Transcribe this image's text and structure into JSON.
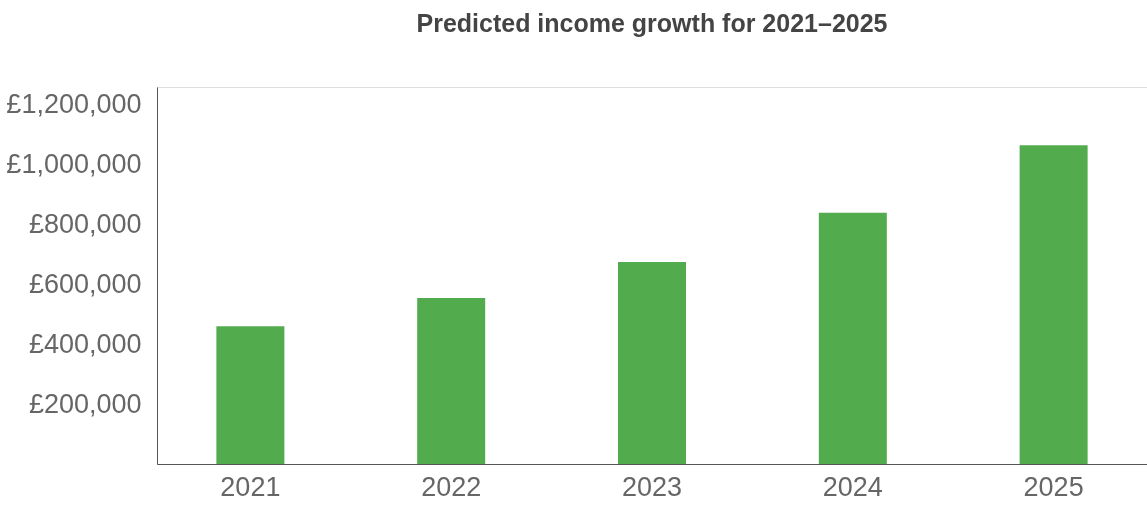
{
  "chart_data": {
    "type": "bar",
    "title": "Predicted income growth for 2021–2025",
    "categories": [
      "2021",
      "2022",
      "2023",
      "2024",
      "2025"
    ],
    "values": [
      460000,
      555000,
      675000,
      840000,
      1065000
    ],
    "color": "#52ac4e",
    "ylim": [
      0,
      1260000
    ],
    "yticks": [
      {
        "value": 200000,
        "label": "£200,000"
      },
      {
        "value": 400000,
        "label": "£400,000"
      },
      {
        "value": 600000,
        "label": "£600,000"
      },
      {
        "value": 800000,
        "label": "£800,000"
      },
      {
        "value": 1000000,
        "label": "£1,000,000"
      },
      {
        "value": 1200000,
        "label": "£1,200,000"
      }
    ],
    "grid": false
  }
}
